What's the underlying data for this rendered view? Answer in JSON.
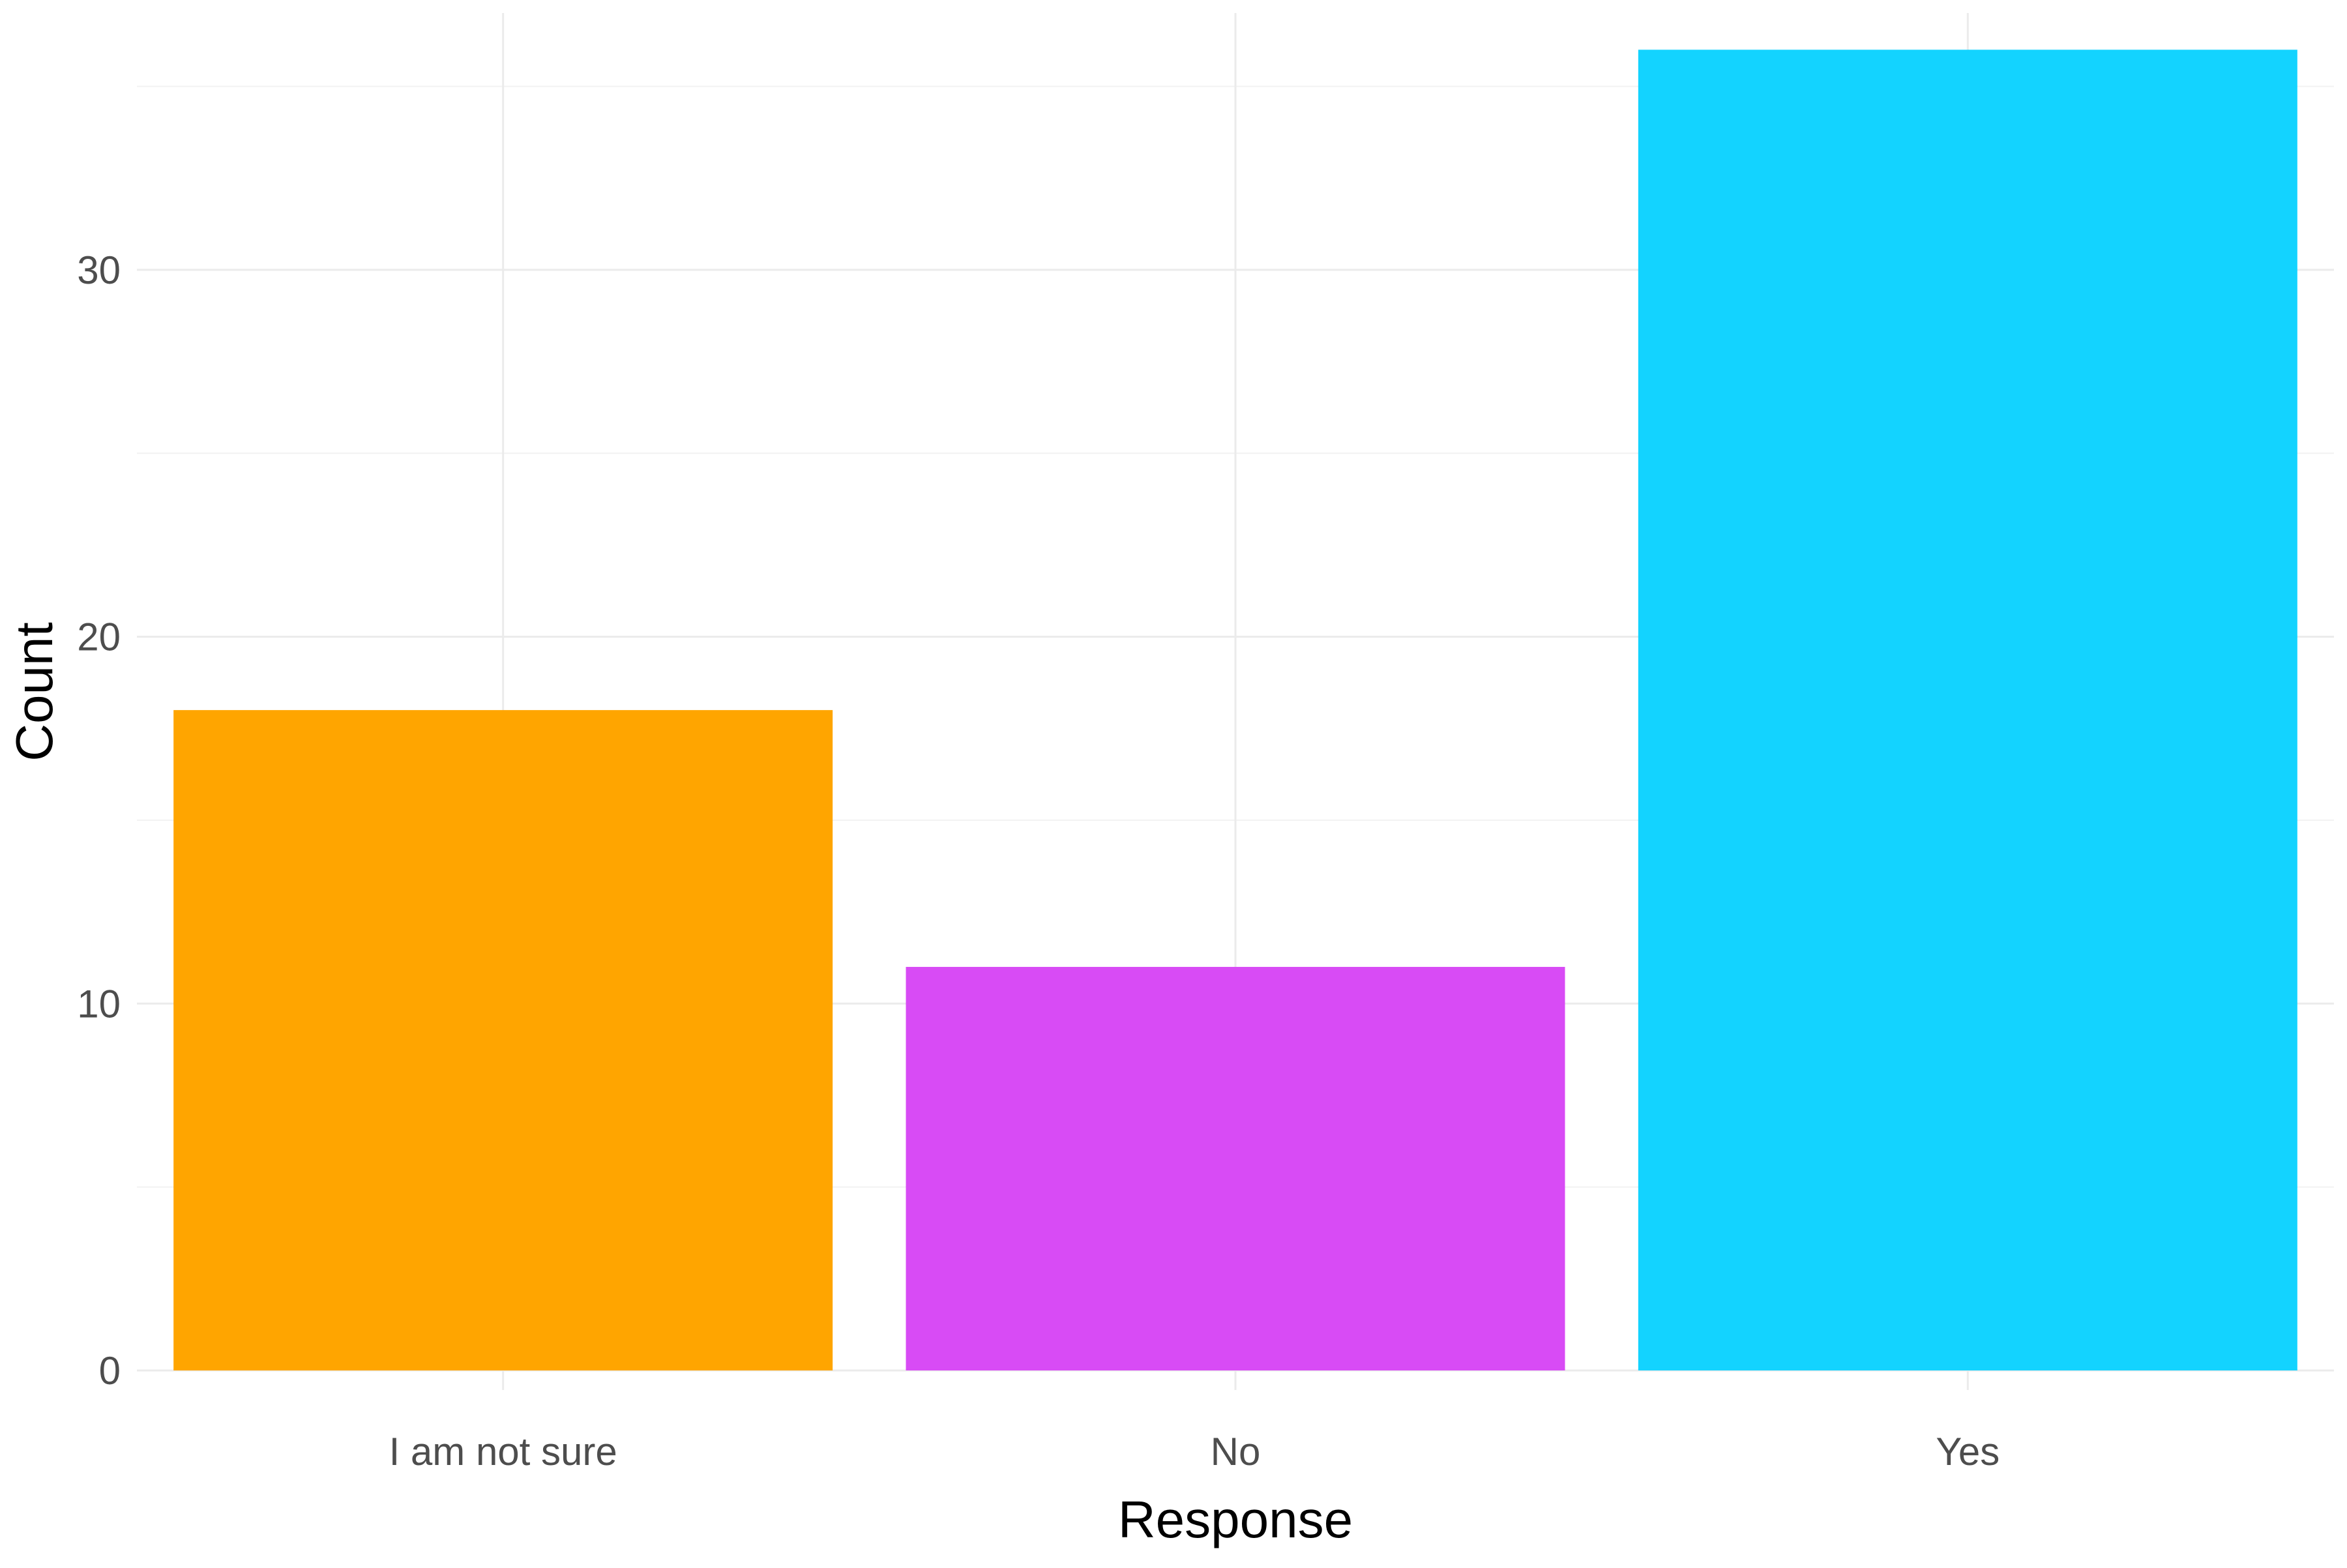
{
  "chart_data": {
    "type": "bar",
    "title": "",
    "xlabel": "Response",
    "ylabel": "Count",
    "categories": [
      "I am not sure",
      "No",
      "Yes"
    ],
    "values": [
      18,
      11,
      36
    ],
    "colors": [
      "#FFA500",
      "#D84BF5",
      "#13D3FF"
    ],
    "ylim": [
      0,
      37
    ],
    "y_ticks": [
      0,
      10,
      20,
      30
    ],
    "y_minor_ticks": [
      5,
      15,
      25,
      35
    ],
    "grid": true,
    "legend": false
  }
}
